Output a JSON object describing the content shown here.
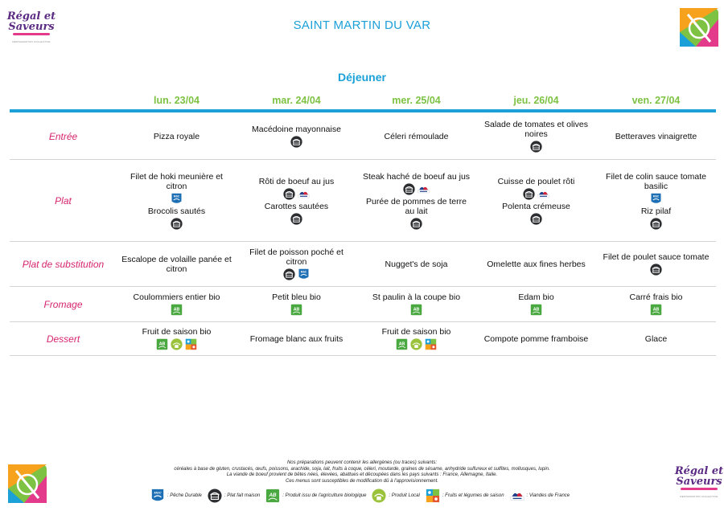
{
  "header": {
    "brand_line1": "Régal et",
    "brand_line2": "Saveurs",
    "brand_sub": "RESTAURATION COLLECTIVE",
    "site": "SAINT MARTIN DU VAR",
    "meal": "Déjeuner"
  },
  "days": [
    "lun. 23/04",
    "mar. 24/04",
    "mer. 25/04",
    "jeu. 26/04",
    "ven. 27/04"
  ],
  "rows": [
    {
      "label": "Entrée",
      "cells": [
        [
          {
            "name": "Pizza royale",
            "icons": []
          }
        ],
        [
          {
            "name": "Macédoine mayonnaise",
            "icons": [
              "maison"
            ]
          }
        ],
        [
          {
            "name": "Céleri rémoulade",
            "icons": []
          }
        ],
        [
          {
            "name": "Salade de tomates et olives noires",
            "icons": [
              "maison"
            ]
          }
        ],
        [
          {
            "name": "Betteraves vinaigrette",
            "icons": []
          }
        ]
      ]
    },
    {
      "label": "Plat",
      "cells": [
        [
          {
            "name": "Filet de hoki meunière et citron",
            "icons": [
              "msc"
            ]
          },
          {
            "name": "Brocolis sautés",
            "icons": [
              "maison"
            ]
          }
        ],
        [
          {
            "name": "Rôti de boeuf au jus",
            "icons": [
              "maison",
              "vf"
            ]
          },
          {
            "name": "Carottes sautées",
            "icons": [
              "maison"
            ]
          }
        ],
        [
          {
            "name": "Steak haché de boeuf au jus",
            "icons": [
              "maison",
              "vf"
            ]
          },
          {
            "name": "Purée de pommes de terre au lait",
            "icons": [
              "maison"
            ]
          }
        ],
        [
          {
            "name": "Cuisse de poulet rôti",
            "icons": [
              "maison",
              "vf"
            ]
          },
          {
            "name": "Polenta crémeuse",
            "icons": [
              "maison"
            ]
          }
        ],
        [
          {
            "name": "Filet de colin sauce tomate basilic",
            "icons": [
              "msc"
            ]
          },
          {
            "name": "Riz pilaf",
            "icons": [
              "maison"
            ]
          }
        ]
      ]
    },
    {
      "label": "Plat de substitution",
      "cells": [
        [
          {
            "name": "Escalope de volaille panée et citron",
            "icons": []
          }
        ],
        [
          {
            "name": "Filet de poisson poché et citron",
            "icons": [
              "maison",
              "msc"
            ]
          }
        ],
        [
          {
            "name": "Nugget's de soja",
            "icons": []
          }
        ],
        [
          {
            "name": "Omelette aux fines herbes",
            "icons": []
          }
        ],
        [
          {
            "name": "Filet de poulet sauce tomate",
            "icons": [
              "maison"
            ]
          }
        ]
      ]
    },
    {
      "label": "Fromage",
      "cells": [
        [
          {
            "name": "Coulommiers entier bio",
            "icons": [
              "bio"
            ]
          }
        ],
        [
          {
            "name": "Petit bleu bio",
            "icons": [
              "bio"
            ]
          }
        ],
        [
          {
            "name": "St paulin à la coupe bio",
            "icons": [
              "bio"
            ]
          }
        ],
        [
          {
            "name": "Edam bio",
            "icons": [
              "bio"
            ]
          }
        ],
        [
          {
            "name": "Carré frais bio",
            "icons": [
              "bio"
            ]
          }
        ]
      ]
    },
    {
      "label": "Dessert",
      "cells": [
        [
          {
            "name": "Fruit de saison bio",
            "icons": [
              "bio",
              "local",
              "saison"
            ]
          }
        ],
        [
          {
            "name": "Fromage blanc aux fruits",
            "icons": []
          }
        ],
        [
          {
            "name": "Fruit de saison bio",
            "icons": [
              "bio",
              "local",
              "saison"
            ]
          }
        ],
        [
          {
            "name": "Compote pomme framboise",
            "icons": []
          }
        ],
        [
          {
            "name": "Glace",
            "icons": []
          }
        ]
      ]
    }
  ],
  "footer": {
    "lines": [
      "Nos préparations peuvent contenir les allergènes (ou traces) suivants:",
      "céréales à base de gluten, crustacés, œufs, poissons, arachide, soja, lait, fruits à coque, céleri, moutarde, graines de sésame, anhydride sulfureux et sulfites, mollusques, lupin.",
      "La viande de boeuf provient de bêtes nées, élevées, abattues et découpées dans les pays suivants : France, Allemagne, Italie.",
      "Ces menus sont susceptibles de modification dû à l'approvisionnement."
    ],
    "legend": [
      {
        "icon": "msc",
        "label": ": Pêche Durable"
      },
      {
        "icon": "maison",
        "label": ": Plat fait maison"
      },
      {
        "icon": "bio",
        "label": ": Produit issu de l'agriculture biologique"
      },
      {
        "icon": "local",
        "label": ": Produit Local"
      },
      {
        "icon": "saison",
        "label": ": Fruits et légumes de saison"
      },
      {
        "icon": "vf",
        "label": ": Viandes de France"
      }
    ]
  },
  "icon_text": {
    "msc": "MSC",
    "bio": "AB"
  },
  "colors": {
    "blue": "#1ba0d8",
    "green": "#7dc242",
    "pink": "#d6246f",
    "purple": "#5b2a82"
  }
}
